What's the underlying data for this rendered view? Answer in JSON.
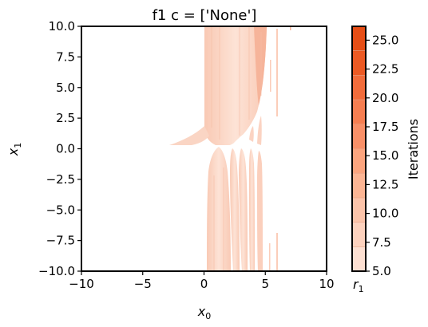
{
  "chart_data": {
    "type": "heatmap",
    "title": "f1 c = ['None']",
    "xlabel": "x0",
    "ylabel": "x1",
    "xlim": [
      -10,
      10
    ],
    "ylim": [
      -10,
      10
    ],
    "x_ticks": [
      "−10",
      "−5",
      "0",
      "5",
      "10"
    ],
    "y_ticks": [
      "10.0",
      "7.5",
      "5.0",
      "2.5",
      "0.0",
      "−2.5",
      "−5.0",
      "−7.5",
      "−10.0"
    ],
    "colorbar": {
      "label": "Iterations",
      "min": 5.0,
      "max": 26.2,
      "ticks": [
        "5.0",
        "7.5",
        "10.0",
        "12.5",
        "15.0",
        "17.5",
        "20.0",
        "22.5",
        "25.0"
      ],
      "bottom_label": "r1",
      "colors": [
        "#fde0d2",
        "#fdd2be",
        "#fcc4aa",
        "#fcb594",
        "#fba47e",
        "#f99068",
        "#f67e51",
        "#f26c3b",
        "#ec5a24",
        "#e64e16"
      ]
    },
    "grid": false
  }
}
